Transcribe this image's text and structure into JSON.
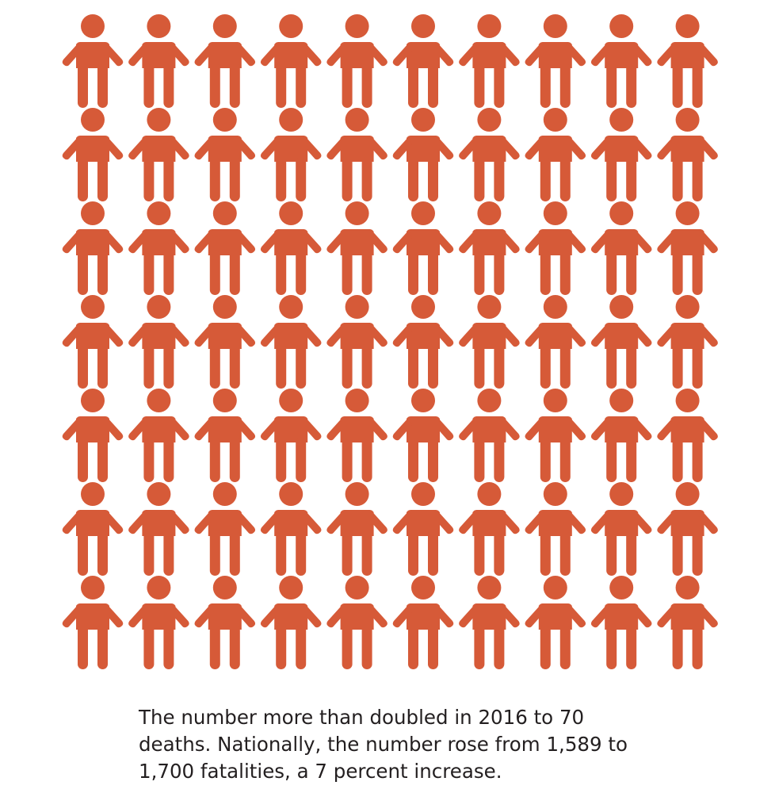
{
  "chart_data": {
    "type": "pictogram",
    "unit_label": "",
    "count": 70,
    "columns": 10,
    "rows": 7,
    "icon": "person-icon",
    "icon_color": "#d65a38"
  },
  "caption": {
    "lines": [
      "The number more than doubled in 2016 to 70",
      "deaths. Nationally, the number rose from 1,589 to",
      "1,700 fatalities, a 7 percent increase."
    ]
  }
}
